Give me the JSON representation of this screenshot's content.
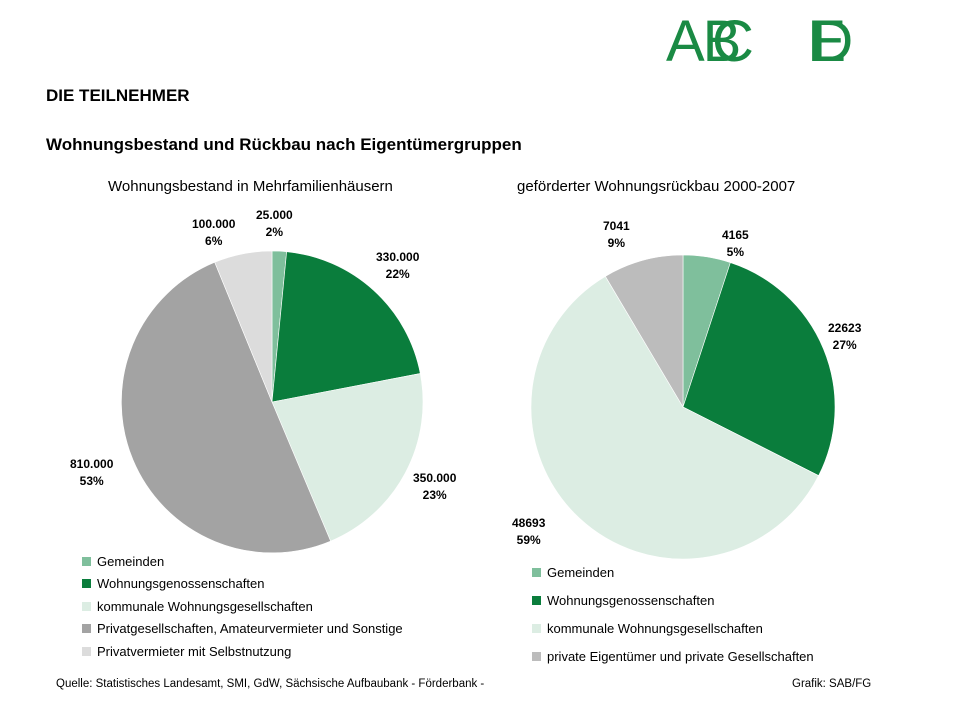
{
  "logo": {
    "text_1": "AB",
    "text_2": "C",
    "text_3": "E",
    "text_4": "D"
  },
  "heading": "DIE TEILNEHMER",
  "subheading": "Wohnungsbestand und Rückbau nach Eigentümergruppen",
  "chart_data": [
    {
      "type": "pie",
      "title": "Wohnungsbestand in Mehrfamilienhäusern",
      "slices": [
        {
          "label": "Gemeinden",
          "value": 25000,
          "value_text": "25.000",
          "percent_text": "2%",
          "color": "#7fbf9c"
        },
        {
          "label": "Wohnungsgenossenschaften",
          "value": 330000,
          "value_text": "330.000",
          "percent_text": "22%",
          "color": "#0a7d3c"
        },
        {
          "label": "kommunale Wohnungsgesellschaften",
          "value": 350000,
          "value_text": "350.000",
          "percent_text": "23%",
          "color": "#dcede3"
        },
        {
          "label": "Privatgesellschaften, Amateurvermieter und Sonstige",
          "value": 810000,
          "value_text": "810.000",
          "percent_text": "53%",
          "color": "#a3a3a3"
        },
        {
          "label": "Privatvermieter mit Selbstnutzung",
          "value": 100000,
          "value_text": "100.000",
          "percent_text": "6%",
          "color": "#dcdcdc"
        }
      ],
      "legend": "bottom"
    },
    {
      "type": "pie",
      "title": "geförderter Wohnungsrückbau 2000-2007",
      "slices": [
        {
          "label": "Gemeinden",
          "value": 4165,
          "value_text": "4165",
          "percent_text": "5%",
          "color": "#7fbf9c"
        },
        {
          "label": "Wohnungsgenossenschaften",
          "value": 22623,
          "value_text": "22623",
          "percent_text": "27%",
          "color": "#0a7d3c"
        },
        {
          "label": "kommunale Wohnungsgesellschaften",
          "value": 48693,
          "value_text": "48693",
          "percent_text": "59%",
          "color": "#dcede3"
        },
        {
          "label": "private Eigentümer und private Gesellschaften",
          "value": 7041,
          "value_text": "7041",
          "percent_text": "9%",
          "color": "#bcbcbc"
        }
      ],
      "legend": "bottom"
    }
  ],
  "footer": {
    "source": "Quelle: Statistisches Landesamt, SMI, GdW, Sächsische Aufbaubank - Förderbank -",
    "credit": "Grafik: SAB/FG"
  }
}
